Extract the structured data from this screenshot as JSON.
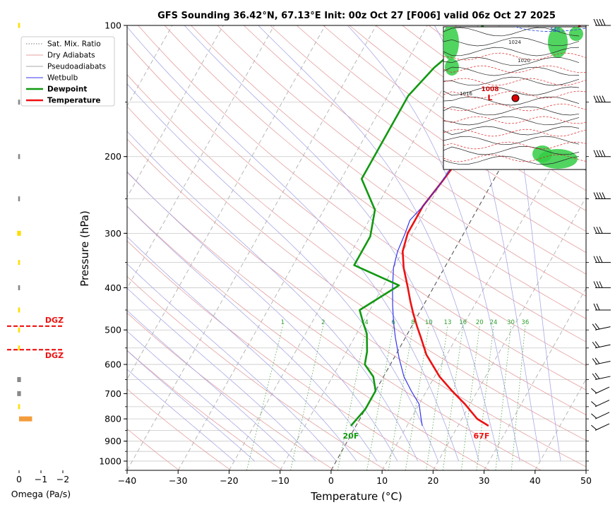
{
  "chart_data": {
    "type": "line",
    "title": "GFS Sounding 36.42°N, 67.13°E Init: 00z Oct 27 [F006] valid 06z Oct 27 2025",
    "xlabel": "Temperature (°C)",
    "ylabel": "Pressure (hPa)",
    "xlim": [
      -40,
      50
    ],
    "ylim": [
      1050,
      100
    ],
    "y_scale": "log",
    "x_ticks": [
      "−40",
      "−30",
      "−20",
      "−10",
      "0",
      "10",
      "20",
      "30",
      "40",
      "50"
    ],
    "y_ticks": [
      "100",
      "200",
      "300",
      "400",
      "500",
      "600",
      "700",
      "800",
      "900",
      "1000"
    ],
    "legend": {
      "placement": "top-left",
      "entries": [
        "Sat. Mix. Ratio",
        "Dry Adiabats",
        "Pseudoadiabats",
        "Wetbulb",
        "Dewpoint",
        "Temperature"
      ]
    },
    "series": [
      {
        "name": "Temperature",
        "color": "#ee1111",
        "points": [
          [
            26,
            830
          ],
          [
            23,
            800
          ],
          [
            19,
            740
          ],
          [
            15,
            690
          ],
          [
            11,
            640
          ],
          [
            6,
            570
          ],
          [
            3,
            520
          ],
          [
            1,
            490
          ],
          [
            -1,
            460
          ],
          [
            -3,
            430
          ],
          [
            -5,
            400
          ],
          [
            -8,
            360
          ],
          [
            -10,
            330
          ],
          [
            -11,
            300
          ],
          [
            -11,
            280
          ],
          [
            -11,
            260
          ],
          [
            -10,
            230
          ],
          [
            -9,
            200
          ],
          [
            -8.5,
            175
          ],
          [
            -8,
            140
          ],
          [
            -7.5,
            140
          ],
          [
            -3,
            120
          ],
          [
            0,
            100
          ]
        ]
      },
      {
        "name": "Wetbulb",
        "color": "#3333ee",
        "points": [
          [
            13,
            830
          ],
          [
            12,
            800
          ],
          [
            10,
            740
          ],
          [
            7,
            690
          ],
          [
            4,
            640
          ],
          [
            1,
            580
          ],
          [
            -2,
            520
          ],
          [
            -4,
            480
          ],
          [
            -6,
            440
          ],
          [
            -8,
            400
          ],
          [
            -10,
            360
          ],
          [
            -11,
            330
          ],
          [
            -11.5,
            300
          ],
          [
            -12,
            280
          ],
          [
            -11,
            260
          ],
          [
            -10,
            230
          ],
          [
            -9.5,
            200
          ],
          [
            -9,
            175
          ],
          [
            -8.5,
            140
          ],
          [
            -8,
            140
          ]
        ]
      },
      {
        "name": "Dewpoint",
        "color": "#119911",
        "points": [
          [
            -1,
            830
          ],
          [
            0,
            760
          ],
          [
            0,
            690
          ],
          [
            -2,
            640
          ],
          [
            -5,
            600
          ],
          [
            -6,
            560
          ],
          [
            -8,
            510
          ],
          [
            -10,
            480
          ],
          [
            -12,
            450
          ],
          [
            -7,
            395
          ],
          [
            -18,
            355
          ],
          [
            -18,
            305
          ],
          [
            -20,
            265
          ],
          [
            -26,
            225
          ],
          [
            -26,
            200
          ],
          [
            -26,
            180
          ],
          [
            -26,
            145
          ],
          [
            -24,
            125
          ],
          [
            -20,
            105
          ],
          [
            -19,
            100
          ]
        ]
      }
    ],
    "annotations": [
      {
        "text": "67F",
        "color": "#ee1111"
      },
      {
        "text": "20F",
        "color": "#119911"
      },
      {
        "text": "DGZ",
        "color": "#ee1111"
      },
      {
        "text": "DGZ",
        "color": "#ee1111"
      }
    ],
    "mixing_ratio_labels": [
      "1",
      "2",
      "4",
      "6",
      "8",
      "10",
      "13",
      "16",
      "20",
      "24",
      "30",
      "36"
    ],
    "omega_panel": {
      "xlabel": "Omega (Pa/s)",
      "x_ticks": [
        "0",
        "−1",
        "−2"
      ],
      "bars": [
        {
          "pressure": 100,
          "value": 0.05,
          "color": "#ffdd00"
        },
        {
          "pressure": 150,
          "value": 0.05,
          "color": "#888888"
        },
        {
          "pressure": 200,
          "value": 0.05,
          "color": "#888888"
        },
        {
          "pressure": 250,
          "value": 0.02,
          "color": "#888888"
        },
        {
          "pressure": 300,
          "value": 0.1,
          "color": "#ffdd00"
        },
        {
          "pressure": 350,
          "value": 0.05,
          "color": "#ffdd00"
        },
        {
          "pressure": 400,
          "value": 0.05,
          "color": "#888888"
        },
        {
          "pressure": 450,
          "value": 0.05,
          "color": "#ffdd00"
        },
        {
          "pressure": 500,
          "value": 0.05,
          "color": "#ffdd00"
        },
        {
          "pressure": 550,
          "value": 0.05,
          "color": "#ffdd00"
        },
        {
          "pressure": 650,
          "value": 0.1,
          "color": "#888888"
        },
        {
          "pressure": 700,
          "value": 0.1,
          "color": "#888888"
        },
        {
          "pressure": 750,
          "value": 0.05,
          "color": "#ffdd00"
        },
        {
          "pressure": 800,
          "value": -0.35,
          "color": "#f39c3c"
        }
      ],
      "dgz_layers": [
        490,
        555
      ]
    },
    "inset_map": {
      "labels": [
        "1008",
        "L",
        "1024",
        "1016",
        "1020",
        "540"
      ]
    },
    "wind_barbs_pressures": [
      100,
      150,
      200,
      250,
      300,
      350,
      400,
      450,
      500,
      550,
      600,
      650,
      700,
      750,
      800,
      850
    ]
  }
}
